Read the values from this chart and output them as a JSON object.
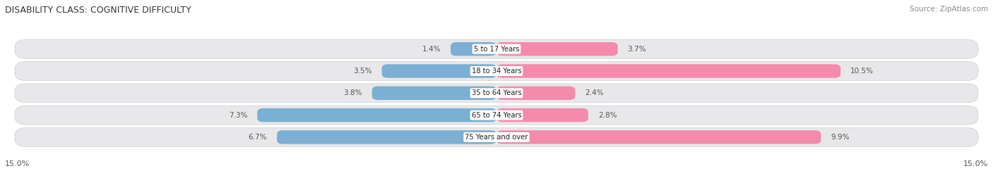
{
  "title": "DISABILITY CLASS: COGNITIVE DIFFICULTY",
  "source": "Source: ZipAtlas.com",
  "categories": [
    "5 to 17 Years",
    "18 to 34 Years",
    "35 to 64 Years",
    "65 to 74 Years",
    "75 Years and over"
  ],
  "male_values": [
    1.4,
    3.5,
    3.8,
    7.3,
    6.7
  ],
  "female_values": [
    3.7,
    10.5,
    2.4,
    2.8,
    9.9
  ],
  "male_color": "#7bafd4",
  "female_color": "#f48bac",
  "axis_max": 15.0,
  "row_bg_color": "#e8e8ea",
  "row_border_color": "#d0d0d5",
  "value_label_color": "#555555",
  "title_color": "#333333",
  "source_color": "#888888"
}
